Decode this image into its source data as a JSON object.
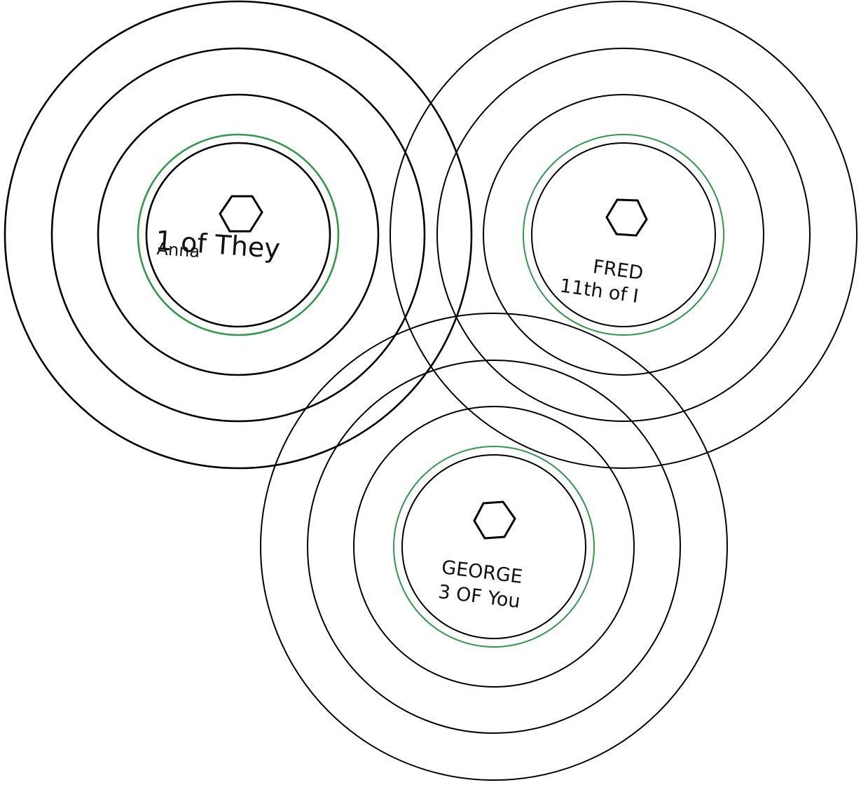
{
  "colors": {
    "ring": "#000000",
    "halo": "#2e9a4a",
    "text": "#111111"
  },
  "icon": "hexagon-icon",
  "nodes": [
    {
      "id": "anna",
      "title": "Anna",
      "subtitle": "1 of They"
    },
    {
      "id": "fred",
      "title": "FRED",
      "subtitle": "11th of I"
    },
    {
      "id": "george",
      "title": "GEORGE",
      "subtitle": "3 OF You"
    }
  ]
}
